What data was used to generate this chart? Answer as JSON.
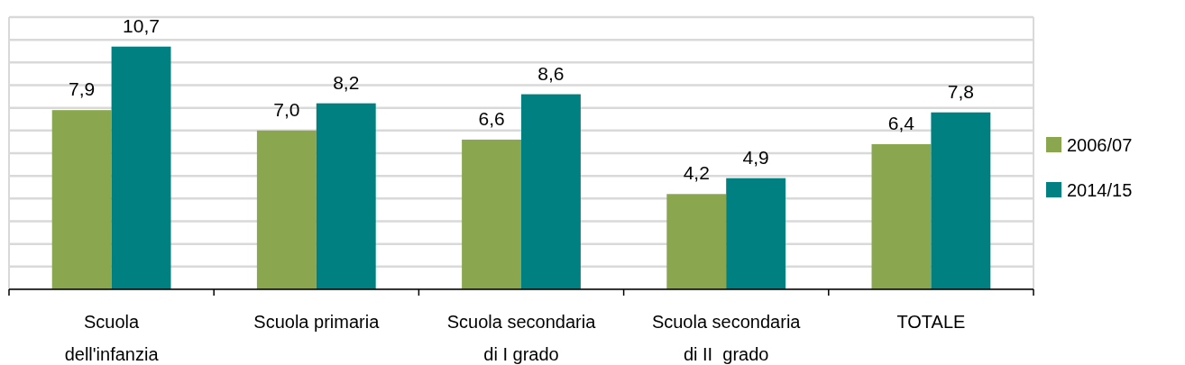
{
  "chart_data": {
    "type": "bar",
    "categories": [
      "Scuola\ndell'infanzia",
      "Scuola primaria",
      "Scuola secondaria\ndi I grado",
      "Scuola secondaria\ndi II  grado",
      "TOTALE"
    ],
    "series": [
      {
        "name": "2006/07",
        "color": "#8aa64f",
        "values": [
          7.9,
          7.0,
          6.6,
          4.2,
          6.4
        ],
        "value_labels": [
          "7,9",
          "7,0",
          "6,6",
          "4,2",
          "6,4"
        ]
      },
      {
        "name": "2014/15",
        "color": "#008080",
        "values": [
          10.7,
          8.2,
          8.6,
          4.9,
          7.8
        ],
        "value_labels": [
          "10,7",
          "8,2",
          "8,6",
          "4,9",
          "7,8"
        ]
      }
    ],
    "ylim": [
      0,
      12
    ],
    "yticks": [
      {
        "value": 0,
        "label": null
      },
      {
        "value": 1,
        "label": null
      },
      {
        "value": 2,
        "label": null
      },
      {
        "value": 3,
        "label": null
      },
      {
        "value": 4,
        "label": null
      },
      {
        "value": 5,
        "label": null
      },
      {
        "value": 6,
        "label": null
      },
      {
        "value": 7,
        "label": null
      },
      {
        "value": 8,
        "label": null
      },
      {
        "value": 9,
        "label": null
      },
      {
        "value": 10,
        "label": null
      },
      {
        "value": 11,
        "label": null
      },
      {
        "value": 12,
        "label": null
      }
    ],
    "tick_labels": "x",
    "grid": "y",
    "legend": "right"
  }
}
